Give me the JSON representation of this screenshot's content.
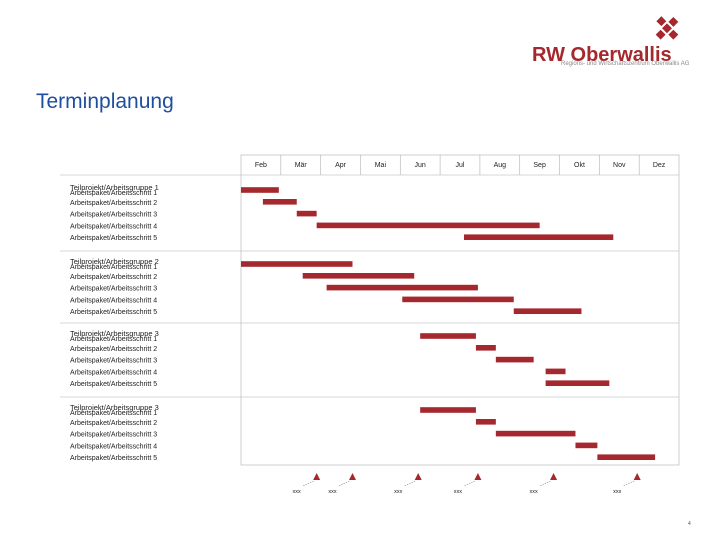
{
  "header": {
    "title": "Terminplanung",
    "logo_name": "RW Oberwallis",
    "logo_tagline": "Regions- und Wirtschaftszentrum Oberwallis AG"
  },
  "page_number": "4",
  "colors": {
    "bar": "#a4282d",
    "title": "#1f4e9e",
    "grid": "#b0b0b0",
    "text": "#222222"
  },
  "chart_data": {
    "type": "gantt",
    "months": [
      "Feb",
      "Mär",
      "Apr",
      "Mai",
      "Jun",
      "Jul",
      "Aug",
      "Sep",
      "Okt",
      "Nov",
      "Dez"
    ],
    "groups": [
      {
        "name": "Teilprojekt/Arbeitsgruppe 1",
        "tasks": [
          {
            "label": "Arbeitspaket/Arbeitsschritt 1",
            "start": 0.0,
            "end": 0.95
          },
          {
            "label": "Arbeitspaket/Arbeitsschritt 2",
            "start": 0.55,
            "end": 1.4
          },
          {
            "label": "Arbeitspaket/Arbeitsschritt 3",
            "start": 1.4,
            "end": 1.9
          },
          {
            "label": "Arbeitspaket/Arbeitsschritt 4",
            "start": 1.9,
            "end": 7.5
          },
          {
            "label": "Arbeitspaket/Arbeitsschritt 5",
            "start": 5.6,
            "end": 9.35
          }
        ]
      },
      {
        "name": "Teilprojekt/Arbeitsgruppe 2",
        "tasks": [
          {
            "label": "Arbeitspaket/Arbeitsschritt 1",
            "start": 0.0,
            "end": 2.8
          },
          {
            "label": "Arbeitspaket/Arbeitsschritt 2",
            "start": 1.55,
            "end": 4.35
          },
          {
            "label": "Arbeitspaket/Arbeitsschritt 3",
            "start": 2.15,
            "end": 5.95
          },
          {
            "label": "Arbeitspaket/Arbeitsschritt 4",
            "start": 4.05,
            "end": 6.85
          },
          {
            "label": "Arbeitspaket/Arbeitsschritt 5",
            "start": 6.85,
            "end": 8.55
          }
        ]
      },
      {
        "name": "Teilprojekt/Arbeitsgruppe 3",
        "tasks": [
          {
            "label": "Arbeitspaket/Arbeitsschritt 1",
            "start": 4.5,
            "end": 5.9
          },
          {
            "label": "Arbeitspaket/Arbeitsschritt 2",
            "start": 5.9,
            "end": 6.4
          },
          {
            "label": "Arbeitspaket/Arbeitsschritt 3",
            "start": 6.4,
            "end": 7.35
          },
          {
            "label": "Arbeitspaket/Arbeitsschritt 4",
            "start": 7.65,
            "end": 8.15
          },
          {
            "label": "Arbeitspaket/Arbeitsschritt 5",
            "start": 7.65,
            "end": 9.25
          }
        ]
      },
      {
        "name": "Teilprojekt/Arbeitsgruppe 3",
        "tasks": [
          {
            "label": "Arbeitspaket/Arbeitsschritt 1",
            "start": 4.5,
            "end": 5.9
          },
          {
            "label": "Arbeitspaket/Arbeitsschritt 2",
            "start": 5.9,
            "end": 6.4
          },
          {
            "label": "Arbeitspaket/Arbeitsschritt 3",
            "start": 6.4,
            "end": 8.4
          },
          {
            "label": "Arbeitspaket/Arbeitsschritt 4",
            "start": 8.4,
            "end": 8.95
          },
          {
            "label": "Arbeitspaket/Arbeitsschritt 5",
            "start": 8.95,
            "end": 10.4
          }
        ]
      }
    ],
    "milestones": [
      {
        "position": 1.9,
        "label": "xxx"
      },
      {
        "position": 2.8,
        "label": "xxx"
      },
      {
        "position": 4.45,
        "label": "xxx"
      },
      {
        "position": 5.95,
        "label": "xxx"
      },
      {
        "position": 7.85,
        "label": "xxx"
      },
      {
        "position": 9.95,
        "label": "xxx"
      }
    ]
  }
}
